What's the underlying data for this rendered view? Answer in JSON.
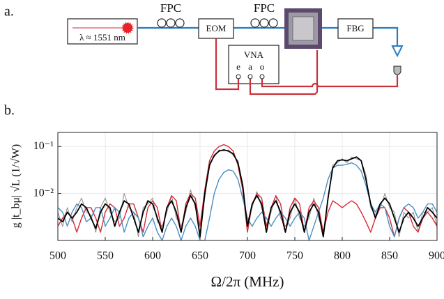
{
  "diagram": {
    "panel_label": "a.",
    "laser": "λ ≈ 1551 nm",
    "fpc_1": "FPC",
    "fpc_2": "FPC",
    "eom": "EOM",
    "fbg": "FBG",
    "vna": "VNA",
    "port_e": "e",
    "port_a": "a",
    "port_o": "o"
  },
  "chart_data": {
    "type": "line",
    "panel_label": "b.",
    "x_label": "Ω/2π (MHz)",
    "y_label": "g |t_bμ| √L  (1/√W)",
    "log_y": true,
    "grid": true,
    "xlim": [
      500,
      900
    ],
    "xticks": [
      500,
      550,
      600,
      650,
      700,
      750,
      800,
      850,
      900
    ],
    "ylim": [
      0.001,
      0.2
    ],
    "yticks": [
      {
        "value": 0.01,
        "label": "10⁻²"
      },
      {
        "value": 0.1,
        "label": "10⁻¹"
      }
    ],
    "x": [
      500,
      505,
      510,
      515,
      520,
      525,
      530,
      535,
      540,
      545,
      550,
      555,
      560,
      565,
      570,
      575,
      580,
      585,
      590,
      595,
      600,
      605,
      610,
      615,
      620,
      625,
      630,
      635,
      640,
      645,
      650,
      655,
      660,
      665,
      670,
      675,
      680,
      685,
      690,
      695,
      700,
      705,
      710,
      715,
      720,
      725,
      730,
      735,
      740,
      745,
      750,
      755,
      760,
      765,
      770,
      775,
      780,
      785,
      790,
      795,
      800,
      805,
      810,
      815,
      820,
      825,
      830,
      835,
      840,
      845,
      850,
      855,
      860,
      865,
      870,
      875,
      880,
      885,
      890,
      895,
      900
    ],
    "series": [
      {
        "color": "#8a8a8a",
        "width": 1,
        "values": [
          0.004,
          0.002,
          0.005,
          0.0025,
          0.005,
          0.008,
          0.004,
          0.0035,
          0.0015,
          0.005,
          0.008,
          0.004,
          0.0025,
          0.003,
          0.01,
          0.005,
          0.004,
          0.0012,
          0.005,
          0.006,
          0.008,
          0.0025,
          0.002,
          0.004,
          0.009,
          0.003,
          0.002,
          0.004,
          0.012,
          0.005,
          0.0015,
          0.008,
          0.045,
          0.06,
          0.085,
          0.08,
          0.085,
          0.065,
          0.05,
          0.012,
          0.0025,
          0.005,
          0.011,
          0.005,
          0.002,
          0.004,
          0.009,
          0.003,
          0.002,
          0.003,
          0.008,
          0.003,
          0.002,
          0.003,
          0.008,
          0.003,
          0.0015,
          0.007,
          0.04,
          0.045,
          0.055,
          0.045,
          0.06,
          0.055,
          0.05,
          0.025,
          0.005,
          0.0035,
          0.005,
          0.01,
          0.005,
          0.004,
          0.0012,
          0.004,
          0.003,
          0.004,
          0.0015,
          0.004,
          0.004,
          0.005,
          0.002
        ]
      },
      {
        "color": "#d62a35",
        "width": 1.4,
        "values": [
          0.002,
          0.003,
          0.004,
          0.003,
          0.0015,
          0.003,
          0.005,
          0.005,
          0.003,
          0.0015,
          0.004,
          0.006,
          0.005,
          0.002,
          0.003,
          0.006,
          0.006,
          0.003,
          0.0015,
          0.005,
          0.007,
          0.005,
          0.0015,
          0.005,
          0.009,
          0.007,
          0.0015,
          0.006,
          0.01,
          0.008,
          0.002,
          0.012,
          0.05,
          0.08,
          0.1,
          0.11,
          0.1,
          0.08,
          0.04,
          0.012,
          0.0015,
          0.006,
          0.01,
          0.008,
          0.002,
          0.005,
          0.009,
          0.006,
          0.0015,
          0.005,
          0.008,
          0.006,
          0.0015,
          0.005,
          0.007,
          0.005,
          0.0015,
          0.004,
          0.007,
          0.006,
          0.005,
          0.006,
          0.007,
          0.006,
          0.004,
          0.0025,
          0.0015,
          0.003,
          0.005,
          0.005,
          0.003,
          0.0012,
          0.003,
          0.005,
          0.004,
          0.002,
          0.0015,
          0.003,
          0.004,
          0.003,
          0.002
        ]
      },
      {
        "color": "#4b8ec4",
        "width": 1.4,
        "values": [
          0.005,
          0.004,
          0.002,
          0.004,
          0.006,
          0.005,
          0.0025,
          0.003,
          0.005,
          0.005,
          0.002,
          0.003,
          0.005,
          0.004,
          0.0015,
          0.003,
          0.004,
          0.003,
          0.0012,
          0.002,
          0.003,
          0.0015,
          0.001,
          0.002,
          0.003,
          0.002,
          0.001,
          0.002,
          0.003,
          0.002,
          0.001,
          0.001,
          0.003,
          0.01,
          0.02,
          0.028,
          0.032,
          0.03,
          0.02,
          0.008,
          0.003,
          0.002,
          0.003,
          0.004,
          0.003,
          0.002,
          0.003,
          0.004,
          0.003,
          0.002,
          0.003,
          0.004,
          0.003,
          0.001,
          0.002,
          0.004,
          0.008,
          0.02,
          0.035,
          0.04,
          0.04,
          0.042,
          0.045,
          0.04,
          0.03,
          0.015,
          0.006,
          0.004,
          0.006,
          0.005,
          0.002,
          0.0012,
          0.003,
          0.005,
          0.006,
          0.005,
          0.003,
          0.004,
          0.006,
          0.006,
          0.004
        ]
      },
      {
        "color": "#000000",
        "width": 1.8,
        "values": [
          0.003,
          0.0025,
          0.004,
          0.003,
          0.004,
          0.006,
          0.005,
          0.003,
          0.0018,
          0.004,
          0.006,
          0.005,
          0.002,
          0.004,
          0.007,
          0.006,
          0.003,
          0.0015,
          0.004,
          0.007,
          0.006,
          0.003,
          0.0015,
          0.005,
          0.007,
          0.004,
          0.0015,
          0.005,
          0.009,
          0.006,
          0.0012,
          0.01,
          0.04,
          0.065,
          0.08,
          0.085,
          0.08,
          0.07,
          0.045,
          0.015,
          0.002,
          0.006,
          0.009,
          0.006,
          0.0015,
          0.005,
          0.007,
          0.004,
          0.0015,
          0.004,
          0.006,
          0.004,
          0.0015,
          0.004,
          0.006,
          0.004,
          0.0012,
          0.008,
          0.035,
          0.05,
          0.052,
          0.05,
          0.055,
          0.06,
          0.05,
          0.02,
          0.006,
          0.003,
          0.006,
          0.008,
          0.006,
          0.003,
          0.0015,
          0.003,
          0.004,
          0.003,
          0.002,
          0.003,
          0.005,
          0.004,
          0.003
        ]
      }
    ]
  }
}
